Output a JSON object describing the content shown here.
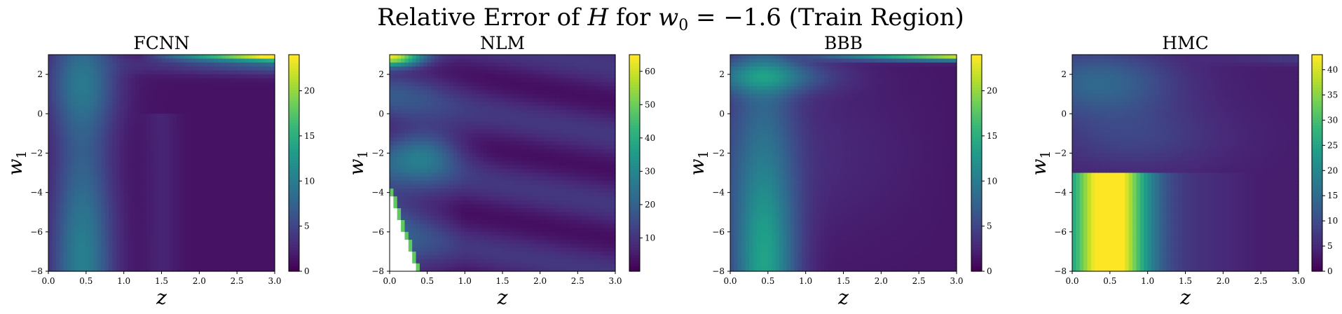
{
  "figure": {
    "title_parts": [
      "Relative Error of ",
      "H",
      " for ",
      "w",
      "0",
      " = −1.6 (Train Region)"
    ]
  },
  "chart_data": [
    {
      "type": "heatmap",
      "title": "FCNN",
      "xlabel": "z",
      "ylabel": "w1",
      "xlim": [
        0,
        3
      ],
      "ylim": [
        -8,
        3
      ],
      "xticks": [
        "0.0",
        "0.5",
        "1.0",
        "1.5",
        "2.0",
        "2.5",
        "3.0"
      ],
      "yticks": [
        "−8",
        "−6",
        "−4",
        "−2",
        "0",
        "2"
      ],
      "colormap": "viridis",
      "colorbar": {
        "min": 0,
        "max": 24,
        "ticks": [
          "0",
          "5",
          "10",
          "15",
          "20"
        ]
      },
      "features": [
        {
          "z": 0.45,
          "w1": -7.5,
          "value": 13,
          "note": "vertical band z~0.2-0.7, strongest low"
        },
        {
          "z": 2.8,
          "w1": 2.8,
          "value": 24,
          "note": "hot band top right"
        },
        {
          "z": 1.5,
          "w1": -2.0,
          "value": 2,
          "note": "faint vertical ridge"
        }
      ]
    },
    {
      "type": "heatmap",
      "title": "NLM",
      "xlabel": "z",
      "ylabel": "w1",
      "xlim": [
        0,
        3
      ],
      "ylim": [
        -8,
        3
      ],
      "xticks": [
        "0.0",
        "0.5",
        "1.0",
        "1.5",
        "2.0",
        "2.5",
        "3.0"
      ],
      "yticks": [
        "−8",
        "−6",
        "−4",
        "−2",
        "0",
        "2"
      ],
      "colormap": "viridis",
      "colorbar": {
        "min": 0,
        "max": 65,
        "ticks": [
          "10",
          "20",
          "30",
          "40",
          "50",
          "60"
        ]
      },
      "features": [
        {
          "z": 0.1,
          "w1": 2.8,
          "value": 65,
          "note": "hot top-left corner"
        },
        {
          "z": 0.45,
          "w1": -2.0,
          "value": 30,
          "note": "teal blob"
        },
        {
          "z": 0.3,
          "w1": -6.0,
          "value": 48,
          "note": "green staircase edge, undefined region below"
        }
      ]
    },
    {
      "type": "heatmap",
      "title": "BBB",
      "xlabel": "z",
      "ylabel": "w1",
      "xlim": [
        0,
        3
      ],
      "ylim": [
        -8,
        3
      ],
      "xticks": [
        "0.0",
        "0.5",
        "1.0",
        "1.5",
        "2.0",
        "2.5",
        "3.0"
      ],
      "yticks": [
        "−8",
        "−6",
        "−4",
        "−2",
        "0",
        "2"
      ],
      "colormap": "viridis",
      "colorbar": {
        "min": 0,
        "max": 24,
        "ticks": [
          "0",
          "5",
          "10",
          "15",
          "20"
        ]
      },
      "features": [
        {
          "z": 0.45,
          "w1": -7.5,
          "value": 18,
          "note": "bright band low"
        },
        {
          "z": 2.8,
          "w1": 2.9,
          "value": 23,
          "note": "hot top right"
        },
        {
          "z": 0.5,
          "w1": 1.8,
          "value": 14,
          "note": "teal patch top left"
        }
      ]
    },
    {
      "type": "heatmap",
      "title": "HMC",
      "xlabel": "z",
      "ylabel": "w1",
      "xlim": [
        0,
        3
      ],
      "ylim": [
        -8,
        3
      ],
      "xticks": [
        "0.0",
        "0.5",
        "1.0",
        "1.5",
        "2.0",
        "2.5",
        "3.0"
      ],
      "yticks": [
        "−8",
        "−6",
        "−4",
        "−2",
        "0",
        "2"
      ],
      "colormap": "viridis",
      "colorbar": {
        "min": 0,
        "max": 43,
        "ticks": [
          "0",
          "5",
          "10",
          "15",
          "20",
          "25",
          "30",
          "35",
          "40"
        ]
      },
      "features": [
        {
          "z": 0.5,
          "w1": -6.0,
          "value": 42,
          "note": "yellow block below w1=-3"
        },
        {
          "z": 0.4,
          "w1": 2.0,
          "value": 14,
          "note": "teal top left"
        }
      ]
    }
  ]
}
